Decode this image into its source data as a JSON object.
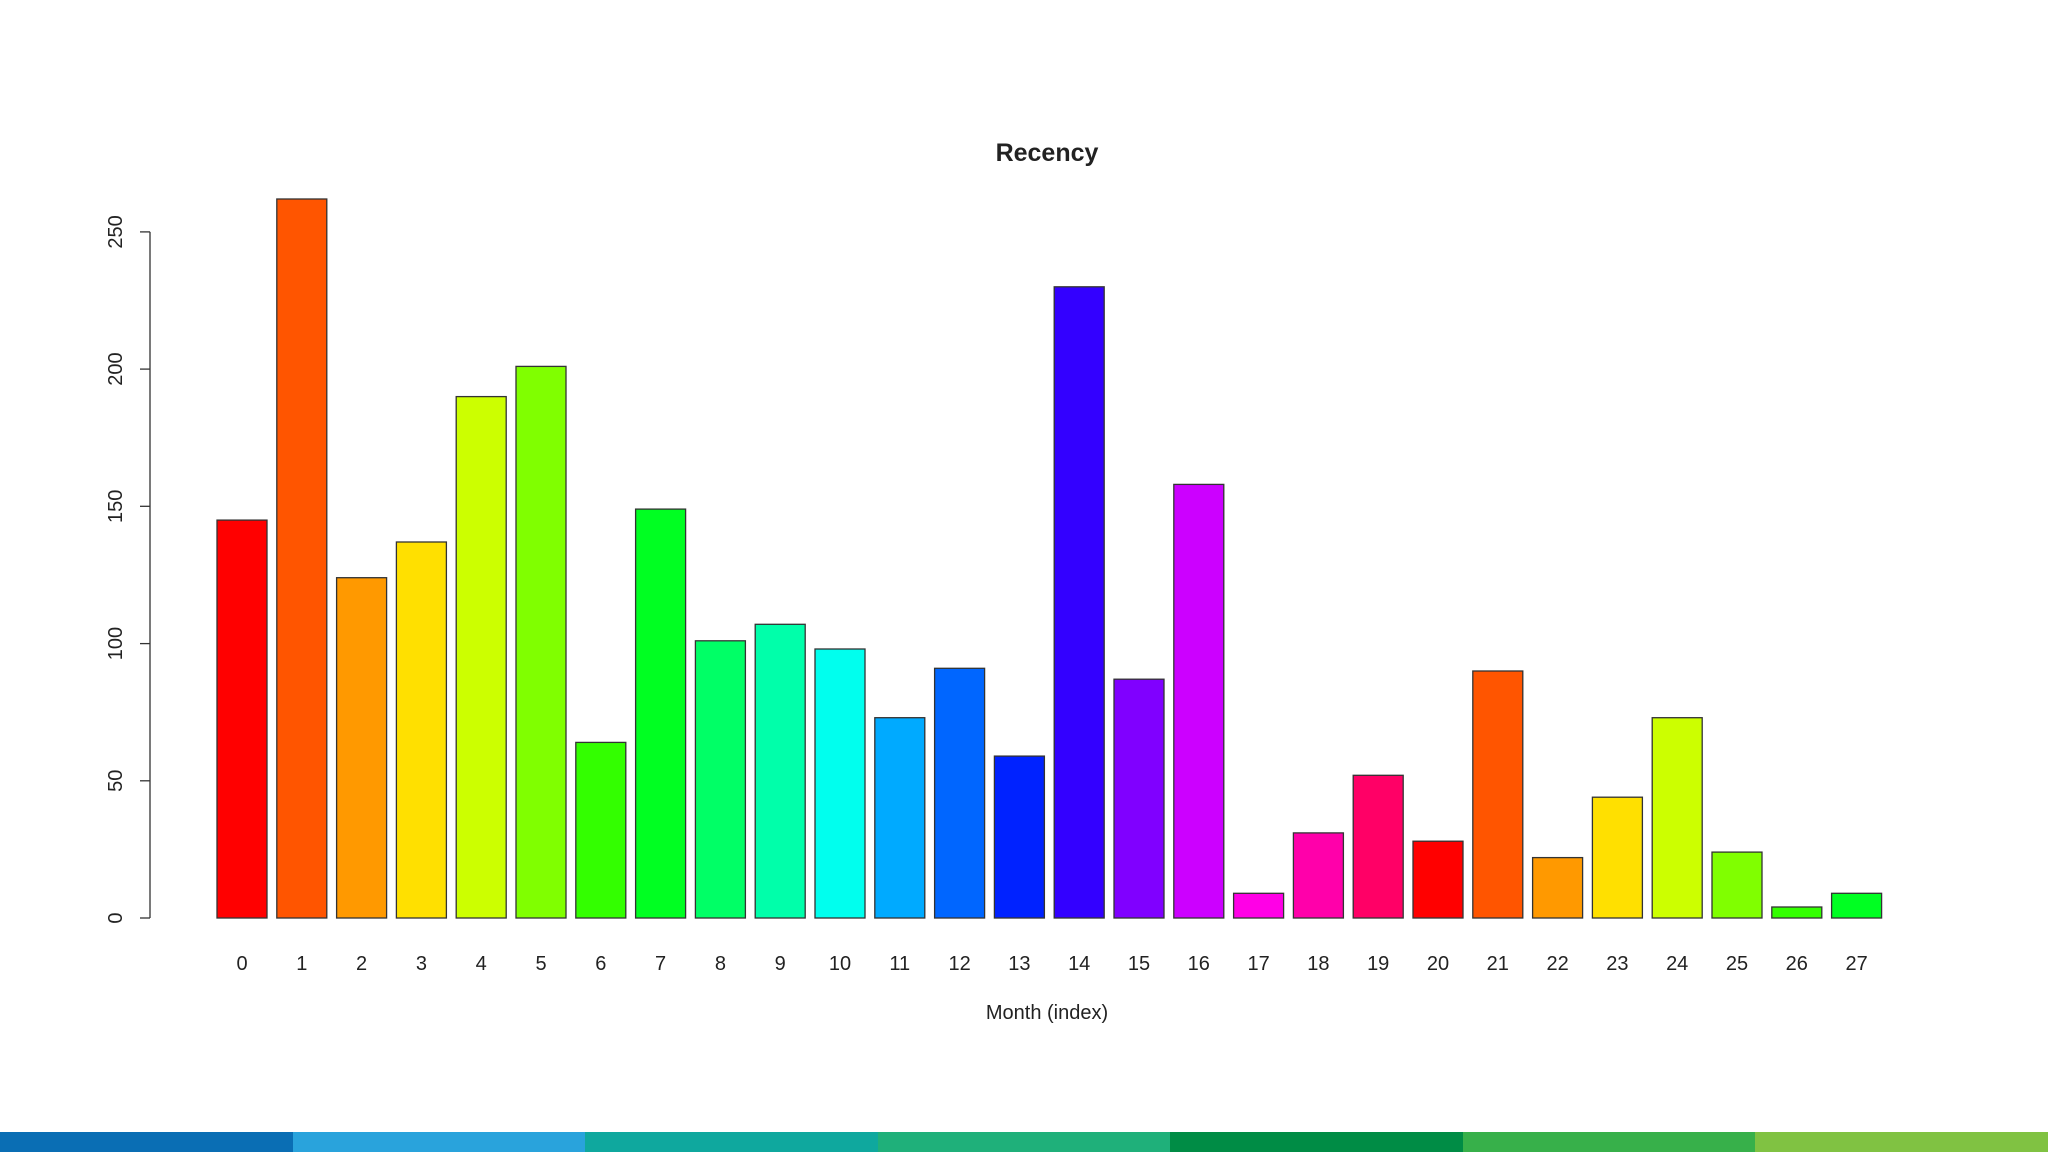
{
  "chart_data": {
    "type": "bar",
    "title": "Recency",
    "xlabel": "Month (index)",
    "ylabel": "",
    "categories": [
      "0",
      "1",
      "2",
      "3",
      "4",
      "5",
      "6",
      "7",
      "8",
      "9",
      "10",
      "11",
      "12",
      "13",
      "14",
      "15",
      "16",
      "17",
      "18",
      "19",
      "20",
      "21",
      "22",
      "23",
      "24",
      "25",
      "26",
      "27"
    ],
    "values": [
      145,
      262,
      124,
      137,
      190,
      201,
      64,
      149,
      101,
      107,
      98,
      73,
      91,
      59,
      230,
      87,
      158,
      9,
      31,
      52,
      28,
      90,
      22,
      44,
      73,
      24,
      4,
      9
    ],
    "bar_colors": [
      "#FF0000",
      "#FF5500",
      "#FF9900",
      "#FFE000",
      "#CCFF00",
      "#80FF00",
      "#33FF00",
      "#00FF22",
      "#00FF66",
      "#00FFAA",
      "#00FFEE",
      "#00AAFF",
      "#0066FF",
      "#0022FF",
      "#3300FF",
      "#8000FF",
      "#CC00FF",
      "#FF00E6",
      "#FF00AA",
      "#FF0066",
      "#FF0000",
      "#FF5500",
      "#FF9900",
      "#FFE000",
      "#CCFF00",
      "#80FF00",
      "#33FF00",
      "#00FF22"
    ],
    "yticks": [
      "0",
      "50",
      "100",
      "150",
      "200",
      "250"
    ],
    "ylim": [
      0,
      262
    ],
    "grid": false,
    "legend": "none"
  },
  "footer_band_colors": [
    "#0A6EB4",
    "#29A3DC",
    "#0FA89E",
    "#1FB07A",
    "#008C45",
    "#37B04A",
    "#80C242"
  ]
}
